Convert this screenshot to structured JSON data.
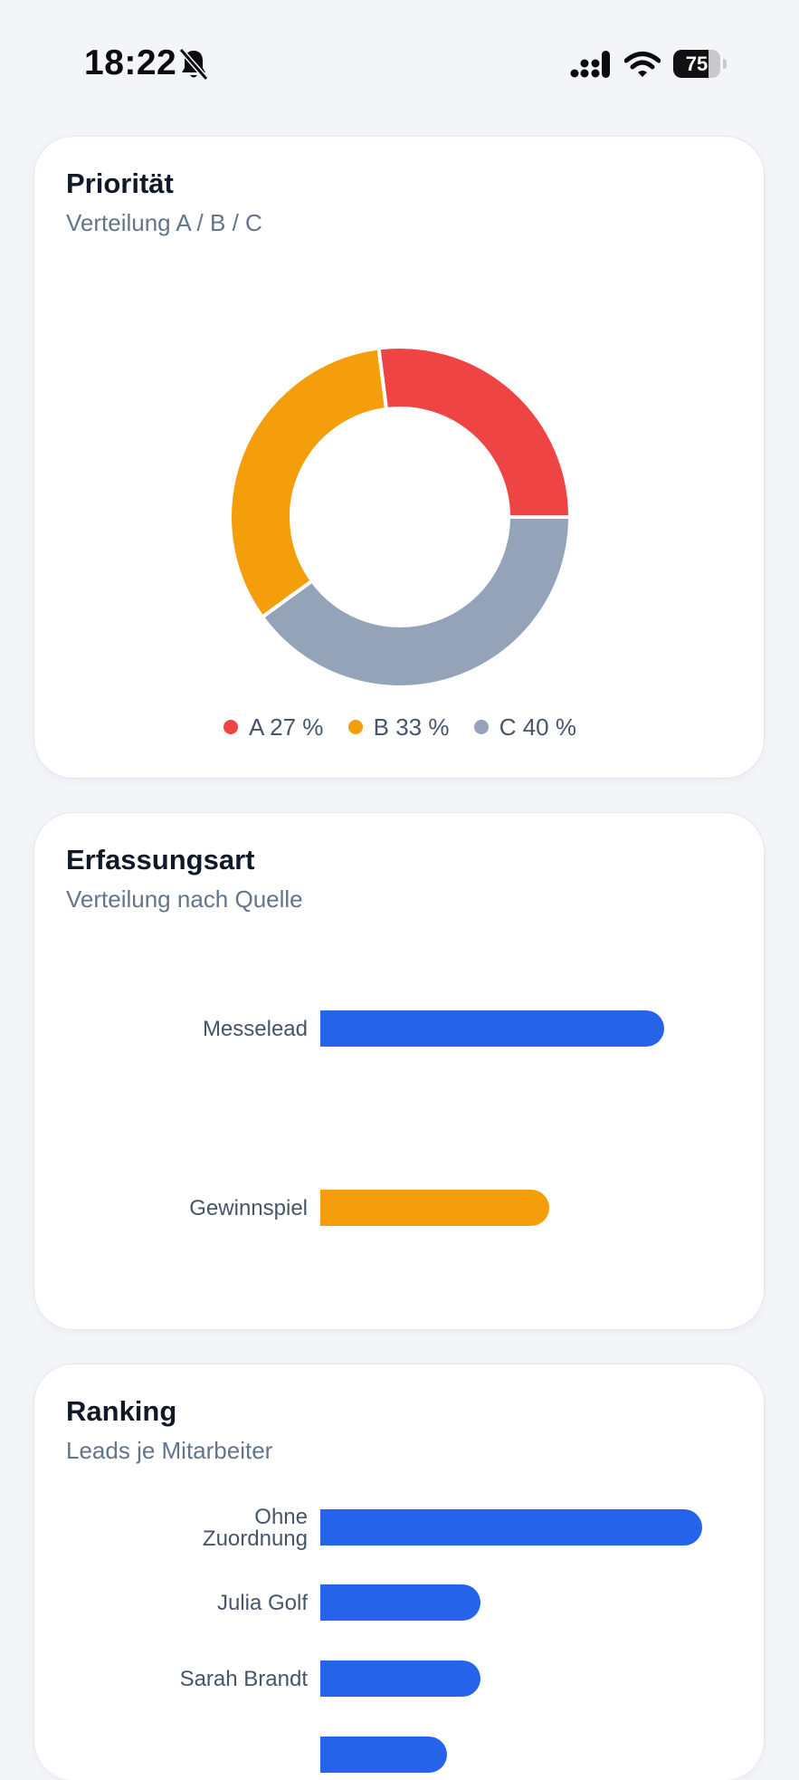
{
  "status_bar": {
    "time": "18:22",
    "battery_level": "75",
    "battery_percent": 75
  },
  "colors": {
    "priority_a": "#ef4444",
    "priority_b": "#f59e0b",
    "priority_c": "#94a3b8",
    "bar_blue": "#2563eb",
    "bar_orange": "#f59e0b"
  },
  "cards": {
    "priority": {
      "title": "Priorität",
      "subtitle": "Verteilung A / B / C",
      "legend": [
        {
          "label": "A 27 %"
        },
        {
          "label": "B 33 %"
        },
        {
          "label": "C 40 %"
        }
      ]
    },
    "capture": {
      "title": "Erfassungsart",
      "subtitle": "Verteilung nach Quelle",
      "rows": [
        {
          "label": "Messelead"
        },
        {
          "label": "Gewinnspiel"
        }
      ]
    },
    "ranking": {
      "title": "Ranking",
      "subtitle": "Leads je Mitarbeiter",
      "rows": [
        {
          "label_line1": "Ohne",
          "label_line2": "Zuordnung"
        },
        {
          "label": "Julia Golf"
        },
        {
          "label": "Sarah Brandt"
        }
      ]
    }
  },
  "chart_data": [
    {
      "type": "pie",
      "title": "Priorität",
      "subtitle": "Verteilung A / B / C",
      "categories": [
        "A",
        "B",
        "C"
      ],
      "values": [
        27,
        33,
        40
      ],
      "unit": "%",
      "donut": true,
      "legend": "bottom"
    },
    {
      "type": "bar",
      "orientation": "horizontal",
      "title": "Erfassungsart",
      "subtitle": "Verteilung nach Quelle",
      "categories": [
        "Messelead",
        "Gewinnspiel"
      ],
      "values": [
        3,
        2
      ],
      "colors": [
        "#2563eb",
        "#f59e0b"
      ]
    },
    {
      "type": "bar",
      "orientation": "horizontal",
      "title": "Ranking",
      "subtitle": "Leads je Mitarbeiter",
      "categories": [
        "Ohne Zuordnung",
        "Julia Golf",
        "Sarah Brandt"
      ],
      "values": [
        5,
        2,
        2
      ],
      "colors": [
        "#2563eb",
        "#2563eb",
        "#2563eb"
      ]
    }
  ]
}
